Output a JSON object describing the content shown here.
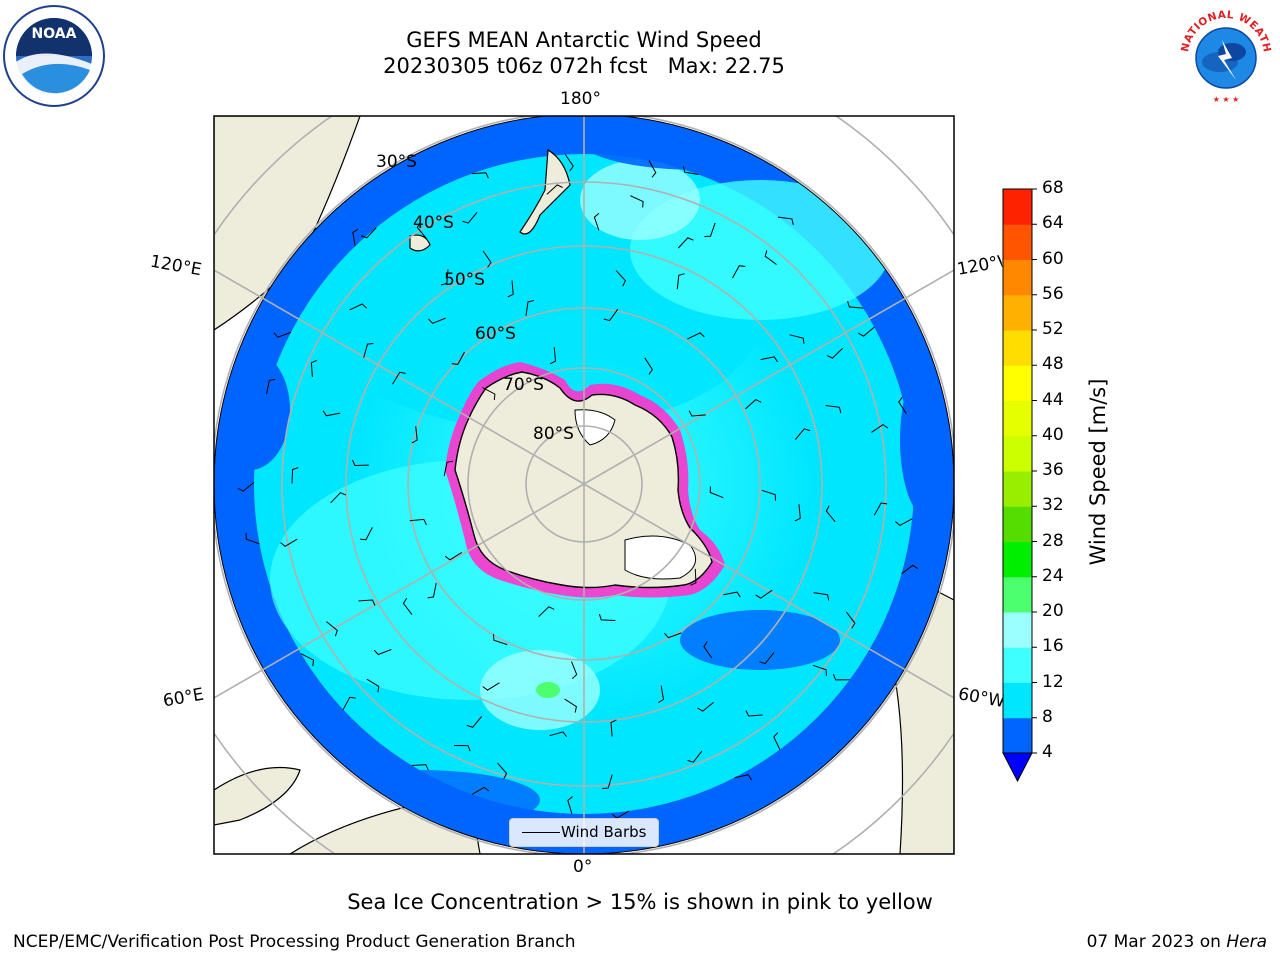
{
  "header": {
    "title_line1": "GEFS MEAN Antarctic Wind Speed",
    "title_line2": "20230305 t06z 072h fcst   Max: 22.75"
  },
  "logos": {
    "left": {
      "icon": "noaa-logo",
      "text": "NOAA"
    },
    "right": {
      "icon": "national-weather-service-logo",
      "text": "NATIONAL WEATHER SERVICE"
    }
  },
  "map": {
    "projection": "south-polar-stereographic",
    "longitude_labels": {
      "top": "180°",
      "bottom": "0°",
      "upper_left": "120°E",
      "lower_left": "60°E",
      "upper_right": "120°W",
      "lower_right": "60°W"
    },
    "latitude_labels": [
      "30°S",
      "40°S",
      "50°S",
      "60°S",
      "70°S",
      "80°S"
    ],
    "legend": {
      "label": "Wind Barbs"
    },
    "colors": {
      "land": "#eeecda",
      "ice_edge": "#ff33cc",
      "grid": "#b0b0b0"
    }
  },
  "colorbar": {
    "label": "Wind Speed [m/s]",
    "ticks": [
      "4",
      "8",
      "12",
      "16",
      "20",
      "24",
      "28",
      "32",
      "36",
      "40",
      "44",
      "48",
      "52",
      "56",
      "60",
      "64",
      "68"
    ],
    "extend": "min",
    "colors": [
      "#0064ff",
      "#00e6ff",
      "#40ffff",
      "#9cffff",
      "#4cff6e",
      "#00ee00",
      "#55dd00",
      "#99ee00",
      "#ccff00",
      "#e6ff00",
      "#ffff00",
      "#ffdd00",
      "#ffb000",
      "#ff8800",
      "#ff5500",
      "#ff2200"
    ],
    "under_color": "#0000ff"
  },
  "note": "Sea Ice Concentration > 15% is shown in pink to yellow",
  "footer": {
    "left": "NCEP/EMC/Verification Post Processing Product Generation Branch",
    "right_date": "07 Mar 2023 on ",
    "right_machine": "Hera"
  }
}
